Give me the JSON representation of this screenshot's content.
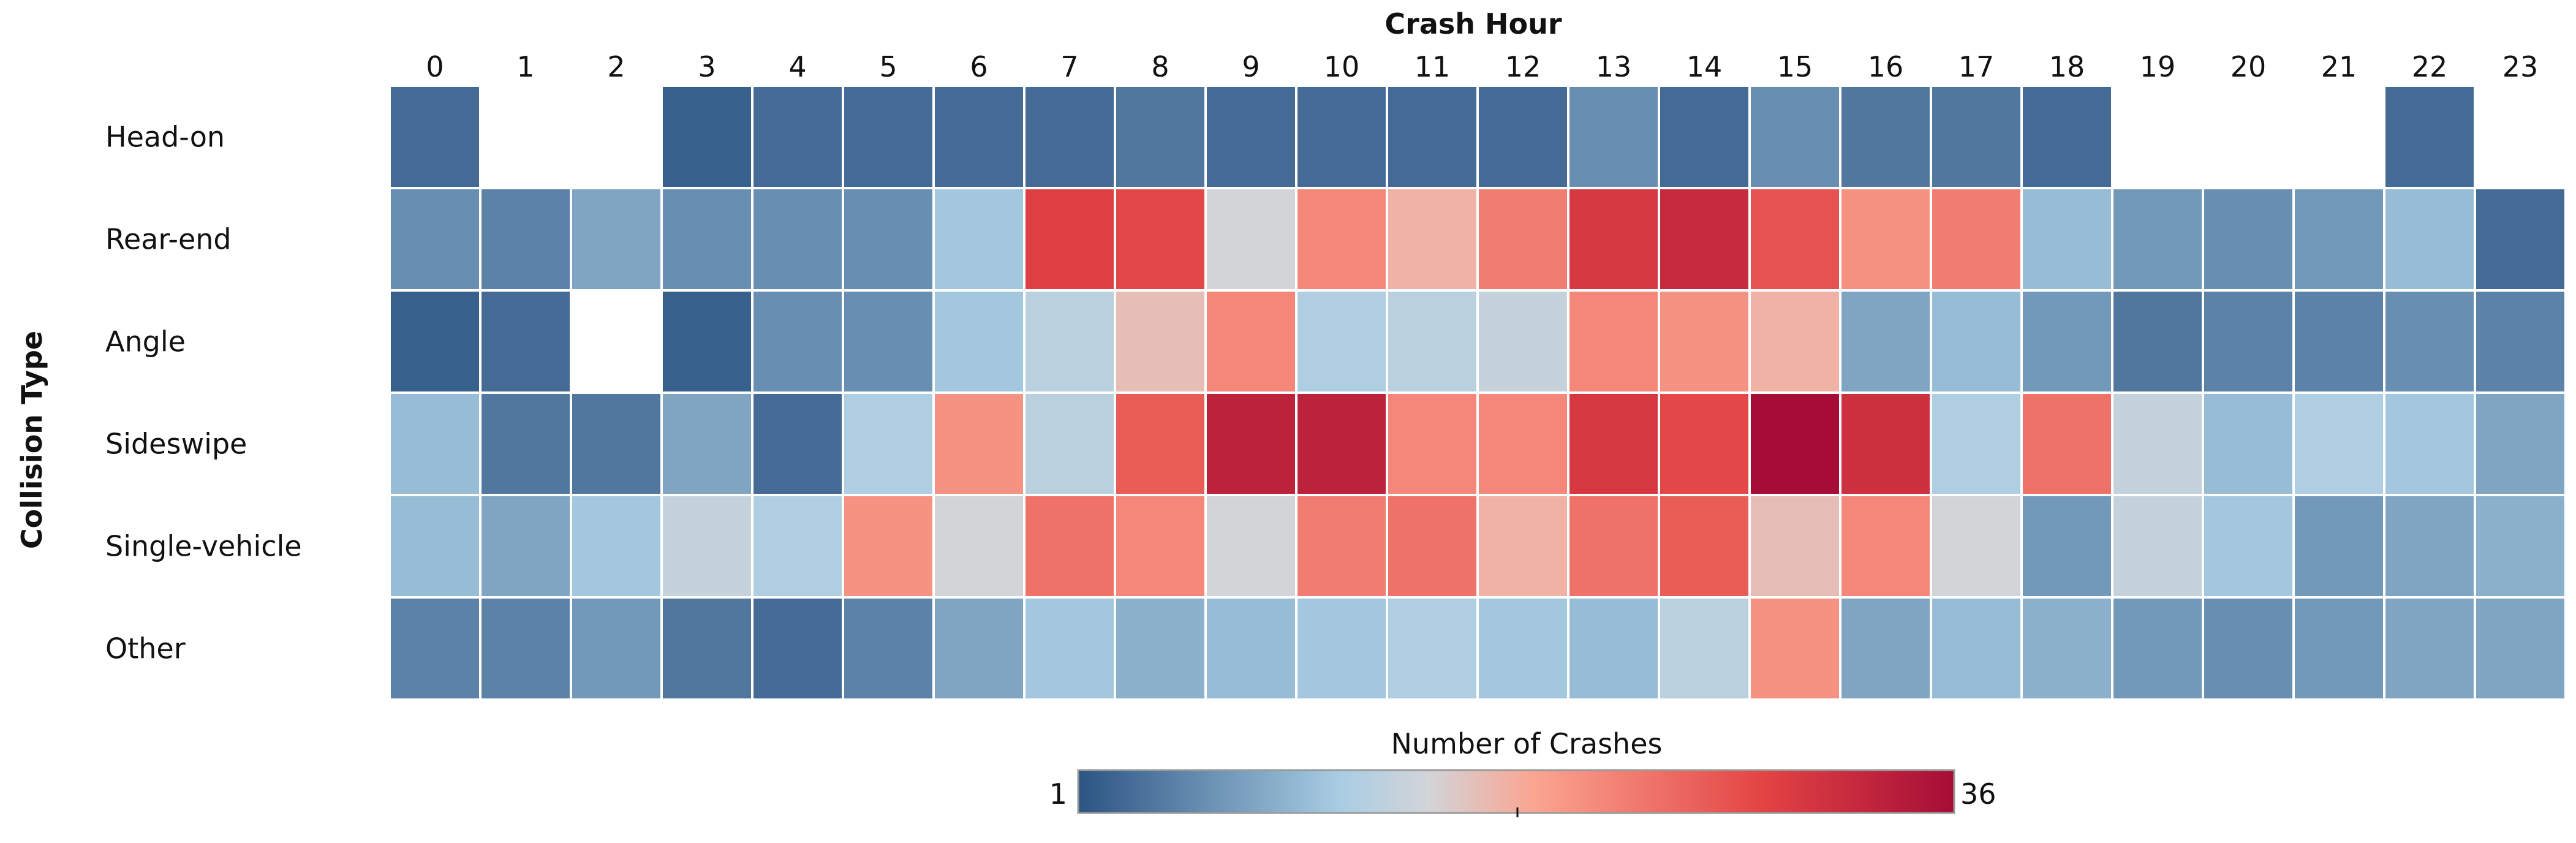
{
  "chart_data": {
    "type": "heatmap",
    "title": "Crash Hour",
    "xlabel": "Crash Hour",
    "ylabel": "Collision Type",
    "x": [
      "0",
      "1",
      "2",
      "3",
      "4",
      "5",
      "6",
      "7",
      "8",
      "9",
      "10",
      "11",
      "12",
      "13",
      "14",
      "15",
      "16",
      "17",
      "18",
      "19",
      "20",
      "21",
      "22",
      "23"
    ],
    "y": [
      "Head-on",
      "Rear-end",
      "Angle",
      "Sideswipe",
      "Single-vehicle",
      "Other"
    ],
    "values": [
      [
        3,
        null,
        null,
        2,
        3,
        3,
        3,
        3,
        4,
        3,
        3,
        3,
        3,
        6,
        3,
        6,
        4,
        4,
        3,
        null,
        null,
        null,
        3,
        null
      ],
      [
        6,
        5,
        8,
        6,
        6,
        6,
        11,
        29,
        28,
        15,
        22,
        18,
        23,
        30,
        32,
        27,
        21,
        23,
        10,
        7,
        6,
        7,
        10,
        3
      ],
      [
        2,
        3,
        null,
        2,
        6,
        6,
        11,
        13,
        17,
        22,
        12,
        13,
        14,
        22,
        21,
        18,
        8,
        10,
        7,
        4,
        5,
        5,
        6,
        5
      ],
      [
        10,
        4,
        4,
        8,
        3,
        12,
        21,
        13,
        26,
        33,
        33,
        22,
        22,
        30,
        28,
        36,
        31,
        12,
        24,
        14,
        10,
        12,
        11,
        8
      ],
      [
        10,
        8,
        11,
        14,
        12,
        21,
        15,
        24,
        22,
        15,
        23,
        24,
        18,
        24,
        26,
        17,
        22,
        15,
        7,
        14,
        11,
        7,
        8,
        9
      ],
      [
        5,
        5,
        7,
        4,
        3,
        5,
        8,
        11,
        9,
        10,
        11,
        12,
        11,
        10,
        13,
        21,
        8,
        10,
        9,
        7,
        6,
        7,
        8,
        8
      ]
    ],
    "legend_title": "Number of Crashes",
    "legend_min": 1,
    "legend_max": 36,
    "legend_min_label": "1",
    "legend_max_label": "36"
  },
  "colors": {
    "low": "#2c5483",
    "mid_low": "#a9cde3",
    "mid": "#d2d4d8",
    "mid_high": "#fba591",
    "high_a": "#e34444",
    "high": "#a50d37"
  }
}
